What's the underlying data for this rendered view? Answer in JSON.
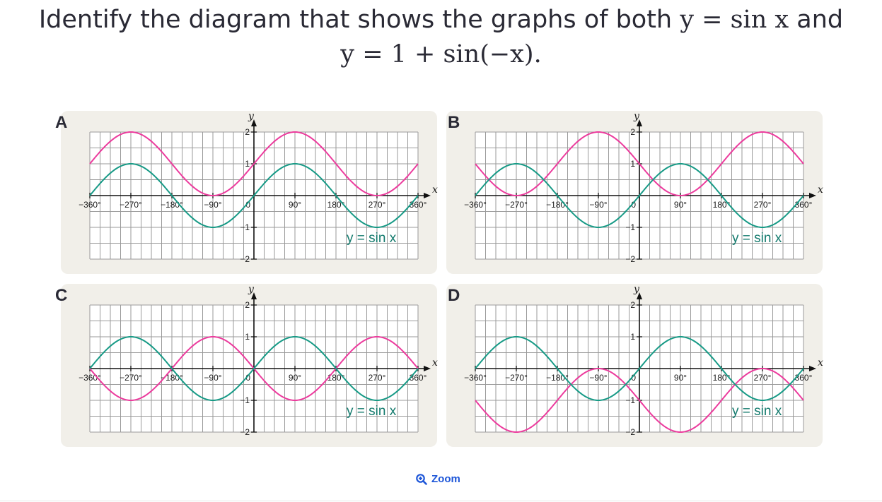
{
  "question": {
    "text_before": "Identify the diagram that shows the graphs of both ",
    "text_and": " and",
    "eq1": "y = sin x",
    "eq2": "y = 1 + sin(−x)."
  },
  "panels": [
    {
      "label": "A",
      "pink_type": "shifted_up",
      "green_label": "y = sin x"
    },
    {
      "label": "B",
      "pink_type": "shifted_up_reflected",
      "green_label": "y = sin x"
    },
    {
      "label": "C",
      "pink_type": "reflected",
      "green_label": "y = sin x"
    },
    {
      "label": "D",
      "pink_type": "shifted_down_reflected",
      "green_label": "y = sin x"
    }
  ],
  "axes": {
    "x_ticks": [
      "−360°",
      "−270°",
      "−180°",
      "−90°",
      "0",
      "90°",
      "180°",
      "270°",
      "360°"
    ],
    "y_ticks": [
      "2",
      "1",
      "−1",
      "−2"
    ],
    "x_label": "x",
    "y_label": "y"
  },
  "colors": {
    "green": "#179a86",
    "pink": "#ec3b9d",
    "grid": "#9a9a9a",
    "panel": "#f1efe9"
  },
  "zoom": {
    "label": "Zoom",
    "icon": "zoom-in-icon"
  }
}
